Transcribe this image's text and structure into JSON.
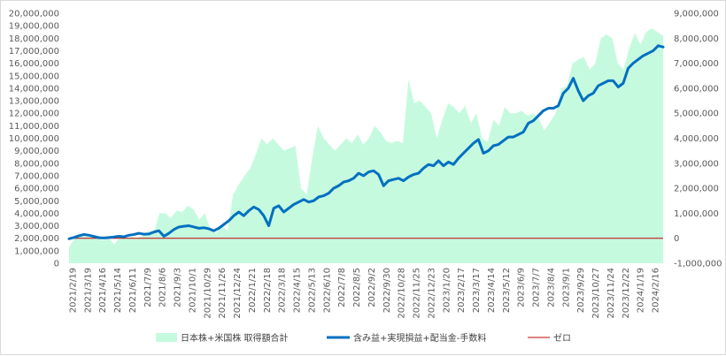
{
  "chart_data": {
    "type": "area+line",
    "title": "",
    "xlabel": "",
    "ylabel": "",
    "ylim_left": [
      0,
      20000000
    ],
    "ylim_right": [
      -1000000,
      9000000
    ],
    "left_ticks": [
      "0",
      "1,000,000",
      "2,000,000",
      "3,000,000",
      "4,000,000",
      "5,000,000",
      "6,000,000",
      "7,000,000",
      "8,000,000",
      "9,000,000",
      "10,000,000",
      "11,000,000",
      "12,000,000",
      "13,000,000",
      "14,000,000",
      "15,000,000",
      "16,000,000",
      "17,000,000",
      "18,000,000",
      "19,000,000",
      "20,000,000"
    ],
    "right_ticks": [
      "-1,000,000",
      "0",
      "1,000,000",
      "2,000,000",
      "3,000,000",
      "4,000,000",
      "5,000,000",
      "6,000,000",
      "7,000,000",
      "8,000,000",
      "9,000,000"
    ],
    "x_tick_labels": [
      "2021/2/19",
      "2021/3/19",
      "2021/4/16",
      "2021/5/14",
      "2021/6/11",
      "2021/7/9",
      "2021/8/6",
      "2021/9/3",
      "2021/10/1",
      "2021/10/29",
      "2021/11/26",
      "2021/12/24",
      "2022/1/21",
      "2022/2/18",
      "2022/3/18",
      "2022/4/15",
      "2022/5/13",
      "2022/6/10",
      "2022/7/8",
      "2022/8/5",
      "2022/9/2",
      "2022/9/30",
      "2022/10/28",
      "2022/11/25",
      "2022/12/23",
      "2023/1/20",
      "2023/2/17",
      "2023/3/17",
      "2023/4/14",
      "2023/5/12",
      "2023/6/9",
      "2023/7/7",
      "2023/8/4",
      "2023/9/1",
      "2023/9/29",
      "2023/10/27",
      "2023/11/24",
      "2023/12/22",
      "2024/1/19",
      "2024/2/16"
    ],
    "legend": [
      "日本株+米国株 取得額合計",
      "含み益+実現損益+配当金-手数料",
      "ゼロ"
    ],
    "legend_position": "bottom",
    "grid": false,
    "colors": {
      "area": "#c6fadf",
      "line": "#0070c0",
      "zero": "#c00000"
    },
    "series": [
      {
        "name": "日本株+米国株 取得額合計",
        "axis": "left",
        "kind": "area",
        "values": [
          1300000,
          2000000,
          2100000,
          2200000,
          2300000,
          2000000,
          1800000,
          2000000,
          1500000,
          2100000,
          2000000,
          2100000,
          2000000,
          2200000,
          2600000,
          2500000,
          4000000,
          4000000,
          3600000,
          4200000,
          4100000,
          4600000,
          4300000,
          3500000,
          4000000,
          2700000,
          2400000,
          3000000,
          2600000,
          5500000,
          6300000,
          7000000,
          7600000,
          8700000,
          10000000,
          9500000,
          10000000,
          9500000,
          9000000,
          9200000,
          9400000,
          6000000,
          5500000,
          8500000,
          11000000,
          10000000,
          9500000,
          9000000,
          9500000,
          10000000,
          9600000,
          10300000,
          9500000,
          10000000,
          11000000,
          10500000,
          9800000,
          9600000,
          9800000,
          9600000,
          14700000,
          12800000,
          13000000,
          12500000,
          12000000,
          10000000,
          11500000,
          12800000,
          12500000,
          12000000,
          12600000,
          11200000,
          12000000,
          10000000,
          9700000,
          11500000,
          11000000,
          12500000,
          12000000,
          12000000,
          12200000,
          11800000,
          12000000,
          11600000,
          10600000,
          11300000,
          12000000,
          14000000,
          14200000,
          16000000,
          16300000,
          16500000,
          15500000,
          16000000,
          18000000,
          18300000,
          18000000,
          16000000,
          15500000,
          17200000,
          18400000,
          17500000,
          18500000,
          18800000,
          18500000,
          18200000
        ]
      },
      {
        "name": "含み益+実現損益+配当金-手数料",
        "axis": "right",
        "kind": "line",
        "values": [
          -20000,
          30000,
          100000,
          150000,
          120000,
          70000,
          20000,
          10000,
          30000,
          50000,
          80000,
          60000,
          120000,
          150000,
          200000,
          160000,
          170000,
          250000,
          300000,
          80000,
          200000,
          350000,
          450000,
          480000,
          500000,
          450000,
          400000,
          420000,
          380000,
          300000,
          400000,
          550000,
          700000,
          900000,
          1050000,
          900000,
          1100000,
          1250000,
          1150000,
          900000,
          500000,
          1200000,
          1300000,
          1050000,
          1200000,
          1350000,
          1450000,
          1550000,
          1450000,
          1500000,
          1650000,
          1700000,
          1800000,
          2000000,
          2100000,
          2250000,
          2300000,
          2400000,
          2600000,
          2500000,
          2650000,
          2700000,
          2550000,
          2100000,
          2300000,
          2350000,
          2400000,
          2300000,
          2450000,
          2550000,
          2600000,
          2800000,
          2950000,
          2900000,
          3100000,
          2900000,
          3050000,
          2950000,
          3200000,
          3400000,
          3600000,
          3800000,
          3950000,
          3400000,
          3500000,
          3700000,
          3750000,
          3900000,
          4050000,
          4050000,
          4150000,
          4250000,
          4600000,
          4700000,
          4900000,
          5100000,
          5200000,
          5200000,
          5300000,
          5800000,
          6000000,
          6400000,
          5900000,
          5500000,
          5700000,
          5800000,
          6100000,
          6200000,
          6300000,
          6300000,
          6050000,
          6200000,
          6800000,
          7000000,
          7150000,
          7300000,
          7400000,
          7500000,
          7700000,
          7650000
        ]
      },
      {
        "name": "ゼロ",
        "axis": "right",
        "kind": "line",
        "values": [
          0,
          0
        ]
      }
    ]
  }
}
